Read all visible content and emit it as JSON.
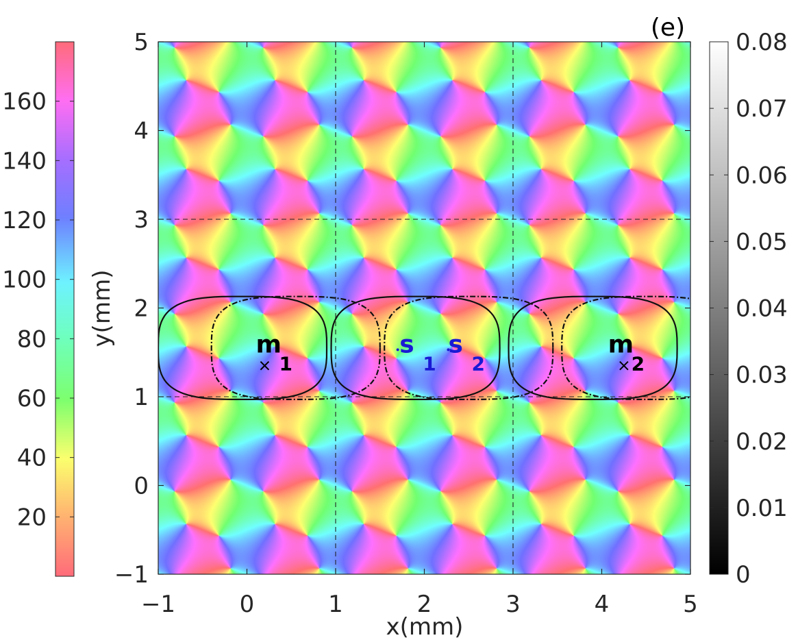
{
  "chart_data": {
    "type": "heatmap",
    "panel_label": "(e)",
    "xlabel": "x(mm)",
    "ylabel": "y(mm)",
    "xlim": [
      -1,
      5
    ],
    "ylim": [
      -1,
      5
    ],
    "x_ticks": [
      -1,
      0,
      1,
      2,
      3,
      4,
      5
    ],
    "y_ticks": [
      -1,
      0,
      1,
      2,
      3,
      4,
      5
    ],
    "x_tick_labels": [
      "−1",
      "0",
      "1",
      "2",
      "3",
      "4",
      "5"
    ],
    "y_tick_labels": [
      "−1",
      "0",
      "1",
      "2",
      "3",
      "4",
      "5"
    ],
    "field": {
      "description_kind": "periodic orientation map",
      "period_x": 1.0,
      "period_y": 1.0,
      "hue_range_deg": [
        0,
        180
      ]
    },
    "dashed_lines": {
      "vertical_x": [
        1,
        3
      ],
      "horizontal_y": [
        1,
        3
      ]
    },
    "left_colorbar": {
      "range": [
        0,
        180
      ],
      "ticks": [
        20,
        40,
        60,
        80,
        100,
        120,
        140,
        160
      ],
      "tick_labels": [
        "20",
        "40",
        "60",
        "80",
        "100",
        "120",
        "140",
        "160"
      ]
    },
    "right_colorbar": {
      "range": [
        0,
        0.08
      ],
      "ticks": [
        0,
        0.01,
        0.02,
        0.03,
        0.04,
        0.05,
        0.06,
        0.07,
        0.08
      ],
      "tick_labels": [
        "0",
        "0.01",
        "0.02",
        "0.03",
        "0.04",
        "0.05",
        "0.06",
        "0.07",
        "0.08"
      ]
    },
    "contours": [
      {
        "name": "solid-1",
        "style": "solid",
        "cx": -0.05,
        "cy": 1.55,
        "rx": 0.95,
        "ry": 0.58
      },
      {
        "name": "dashed-1",
        "style": "dashed",
        "cx": 0.55,
        "cy": 1.55,
        "rx": 0.95,
        "ry": 0.58
      },
      {
        "name": "solid-2",
        "style": "solid",
        "cx": 1.9,
        "cy": 1.55,
        "rx": 0.95,
        "ry": 0.58
      },
      {
        "name": "dashed-2",
        "style": "dashed",
        "cx": 2.5,
        "cy": 1.55,
        "rx": 0.95,
        "ry": 0.58
      },
      {
        "name": "solid-3",
        "style": "solid",
        "cx": 3.9,
        "cy": 1.55,
        "rx": 0.95,
        "ry": 0.58
      },
      {
        "name": "dashed-3",
        "style": "dashed",
        "cx": 4.5,
        "cy": 1.55,
        "rx": 0.95,
        "ry": 0.58
      }
    ],
    "markers": [
      {
        "id": "m1",
        "kind": "cross",
        "x": 0.2,
        "y": 1.35,
        "color": "#000000",
        "label_main": "m",
        "label_sub": "1",
        "lx": 0.1,
        "ly": 1.5
      },
      {
        "id": "m2",
        "kind": "cross",
        "x": 4.25,
        "y": 1.35,
        "color": "#000000",
        "label_main": "m",
        "label_sub": "2",
        "lx": 4.07,
        "ly": 1.5
      },
      {
        "id": "s1",
        "kind": "dot",
        "x": 1.7,
        "y": 1.53,
        "color": "#1a1ad4",
        "label_main": "s",
        "label_sub": "1",
        "lx": 1.72,
        "ly": 1.5
      },
      {
        "id": "s2",
        "kind": "dot",
        "x": 2.27,
        "y": 1.53,
        "color": "#1a1ad4",
        "label_main": "s",
        "label_sub": "2",
        "lx": 2.27,
        "ly": 1.5
      }
    ]
  }
}
